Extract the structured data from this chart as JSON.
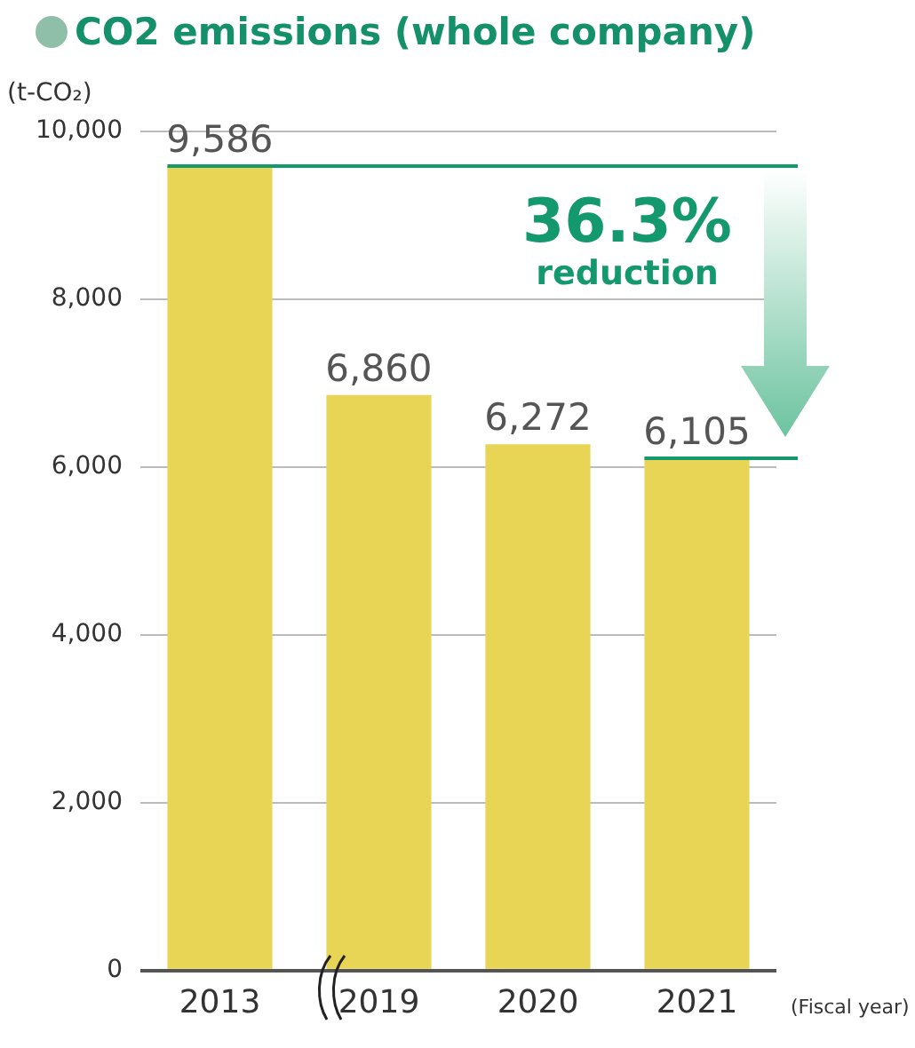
{
  "chart_data": {
    "type": "bar",
    "title": "CO2 emissions (whole company)",
    "ylabel": "(t-CO₂)",
    "xlabel": "(Fiscal year)",
    "categories": [
      "2013",
      "2019",
      "2020",
      "2021"
    ],
    "values": [
      9586,
      6860,
      6272,
      6105
    ],
    "value_labels": [
      "9,586",
      "6,860",
      "6,272",
      "6,105"
    ],
    "color": "#e8d555",
    "ylim": [
      0,
      10000
    ],
    "yticks": [
      0,
      {
        "value": 2000,
        "label": "2,000"
      },
      {
        "value": 4000,
        "label": "4,000"
      },
      {
        "value": 6000,
        "label": "6,000"
      },
      {
        "value": 8000,
        "label": "8,000"
      },
      {
        "value": 10000,
        "label": "10,000"
      }
    ],
    "grid": "y",
    "ref_lines": [
      {
        "axis": "y",
        "value": 9586,
        "color": "#14996e"
      },
      {
        "axis": "y",
        "value": 6105,
        "color": "#14996e"
      }
    ],
    "annotations": [
      "36.3% reduction"
    ]
  }
}
